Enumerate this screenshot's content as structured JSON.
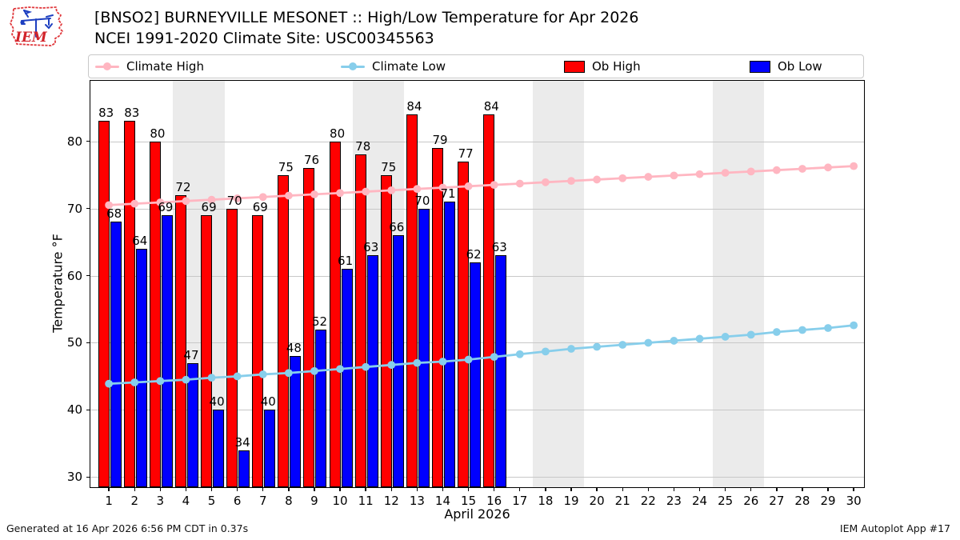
{
  "header": {
    "title_line1": "[BNSO2] BURNEYVILLE MESONET :: High/Low Temperature for Apr 2026",
    "title_line2": "NCEI 1991-2020 Climate Site: USC00345563"
  },
  "logo": {
    "text": "IEM"
  },
  "legend": {
    "items": [
      {
        "label": "Climate High",
        "marker": "line",
        "color": "#ffb6c1"
      },
      {
        "label": "Climate Low",
        "marker": "line",
        "color": "#87ceeb"
      },
      {
        "label": "Ob High",
        "marker": "rect",
        "color": "#ff0000"
      },
      {
        "label": "Ob Low",
        "marker": "rect",
        "color": "#0000ff"
      }
    ]
  },
  "axes": {
    "ylabel": "Temperature °F",
    "xlabel": "April 2026"
  },
  "footer": {
    "left": "Generated at 16 Apr 2026 6:56 PM CDT in 0.37s",
    "right": "IEM Autoplot App #17"
  },
  "colors": {
    "ob_high": "#ff0000",
    "ob_low": "#0000ff",
    "climate_high": "#ffb6c1",
    "climate_low": "#87ceeb",
    "weekend_band": "#ebebeb",
    "gridline": "#c8c8c8",
    "bar_edge": "#000000"
  },
  "chart_data": {
    "type": "bar",
    "title": "[BNSO2] BURNEYVILLE MESONET :: High/Low Temperature for Apr 2026",
    "subtitle": "NCEI 1991-2020 Climate Site: USC00345563",
    "xlabel": "April 2026",
    "ylabel": "Temperature °F",
    "x_days": [
      1,
      2,
      3,
      4,
      5,
      6,
      7,
      8,
      9,
      10,
      11,
      12,
      13,
      14,
      15,
      16,
      17,
      18,
      19,
      20,
      21,
      22,
      23,
      24,
      25,
      26,
      27,
      28,
      29,
      30
    ],
    "series": [
      {
        "name": "Ob High",
        "type": "bar",
        "color": "#ff0000",
        "days": [
          1,
          2,
          3,
          4,
          5,
          6,
          7,
          8,
          9,
          10,
          11,
          12,
          13,
          14,
          15,
          16
        ],
        "values": [
          83,
          83,
          80,
          72,
          69,
          70,
          69,
          75,
          76,
          80,
          78,
          75,
          84,
          79,
          77,
          84
        ]
      },
      {
        "name": "Ob Low",
        "type": "bar",
        "color": "#0000ff",
        "days": [
          1,
          2,
          3,
          4,
          5,
          6,
          7,
          8,
          9,
          10,
          11,
          12,
          13,
          14,
          15,
          16
        ],
        "values": [
          68,
          64,
          69,
          47,
          40,
          34,
          40,
          48,
          52,
          61,
          63,
          66,
          70,
          71,
          62,
          63
        ]
      },
      {
        "name": "Climate High",
        "type": "line",
        "color": "#ffb6c1",
        "values": [
          70.5,
          70.7,
          70.9,
          71.1,
          71.3,
          71.5,
          71.7,
          71.9,
          72.1,
          72.3,
          72.5,
          72.7,
          72.9,
          73.1,
          73.3,
          73.5,
          73.7,
          73.9,
          74.1,
          74.3,
          74.5,
          74.7,
          74.9,
          75.1,
          75.3,
          75.5,
          75.7,
          75.9,
          76.1,
          76.3
        ]
      },
      {
        "name": "Climate Low",
        "type": "line",
        "color": "#87ceeb",
        "values": [
          43.9,
          44.1,
          44.3,
          44.5,
          44.8,
          45.0,
          45.3,
          45.5,
          45.8,
          46.1,
          46.4,
          46.7,
          47.0,
          47.2,
          47.5,
          47.9,
          48.3,
          48.7,
          49.1,
          49.4,
          49.7,
          50.0,
          50.3,
          50.6,
          50.9,
          51.2,
          51.6,
          51.9,
          52.2,
          52.6
        ]
      }
    ],
    "yticks": [
      30,
      40,
      50,
      60,
      70,
      80
    ],
    "ylim": [
      28.5,
      89
    ],
    "xlim": [
      0.28,
      30.4
    ],
    "weekend_bands": [
      [
        3.5,
        5.5
      ],
      [
        10.5,
        12.5
      ],
      [
        17.5,
        19.5
      ],
      [
        24.5,
        26.5
      ]
    ],
    "grid": "horizontal",
    "legend_position": "top"
  }
}
